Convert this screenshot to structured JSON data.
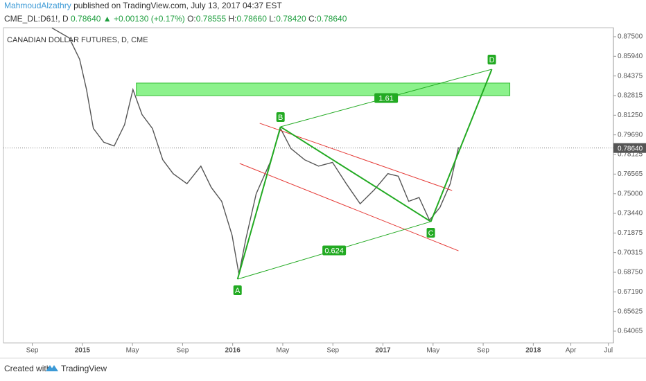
{
  "header": {
    "author": "MahmoudAlzathry",
    "published": "published on TradingView.com, July 13, 2017 04:37 EST",
    "symbol": "CME_DL:D61!, D",
    "last": "0.78640",
    "change": "▲ +0.00130 (+0.17%)",
    "open_label": "O:",
    "open": "0.78555",
    "high_label": "H:",
    "high": "0.78660",
    "low_label": "L:",
    "low": "0.78420",
    "close_label": "C:",
    "close": "0.78640"
  },
  "footer": {
    "created": "Created with",
    "brand": "TradingView"
  },
  "chart_data": {
    "type": "line",
    "title": "CANADIAN DOLLAR FUTURES, D, CME",
    "color": "#555555",
    "x": [
      9.57,
      10.95,
      11.78,
      12.33,
      12.88,
      13.71,
      14.54,
      15.37,
      16.04,
      16.76,
      17.59,
      18.42,
      19.25,
      20.35,
      21.46,
      22.29,
      23.12,
      23.95,
      24.5,
      25.05,
      25.88,
      26.99,
      27.82,
      28.65,
      29.75,
      30.86,
      31.97,
      33.07,
      34.18,
      35.29,
      36.39,
      37.22,
      38.05,
      38.88,
      39.71,
      40.54,
      41.37,
      42.03
    ],
    "values": [
      0.882,
      0.874,
      0.857,
      0.833,
      0.802,
      0.791,
      0.788,
      0.805,
      0.833,
      0.813,
      0.802,
      0.777,
      0.766,
      0.758,
      0.772,
      0.755,
      0.744,
      0.717,
      0.686,
      0.714,
      0.75,
      0.775,
      0.802,
      0.786,
      0.777,
      0.772,
      0.775,
      0.758,
      0.742,
      0.753,
      0.766,
      0.764,
      0.744,
      0.747,
      0.729,
      0.739,
      0.758,
      0.787
    ],
    "xlim": [
      5.7,
      54.4
    ],
    "ylim": [
      0.63128,
      0.88217
    ],
    "xticks": [
      {
        "value": 8,
        "label": "Sep"
      },
      {
        "value": 12,
        "label": "2015"
      },
      {
        "value": 16,
        "label": "May"
      },
      {
        "value": 20,
        "label": "Sep"
      },
      {
        "value": 24,
        "label": "2016"
      },
      {
        "value": 28,
        "label": "May"
      },
      {
        "value": 32,
        "label": "Sep"
      },
      {
        "value": 36,
        "label": "2017"
      },
      {
        "value": 40,
        "label": "May"
      },
      {
        "value": 44,
        "label": "Sep"
      },
      {
        "value": 48,
        "label": "2018"
      },
      {
        "value": 51,
        "label": "Apr"
      },
      {
        "value": 54,
        "label": "Jul"
      }
    ],
    "yticks": [
      {
        "value": 0.875,
        "label": "0.87500"
      },
      {
        "value": 0.8594,
        "label": "0.85940"
      },
      {
        "value": 0.84375,
        "label": "0.84375"
      },
      {
        "value": 0.82815,
        "label": "0.82815"
      },
      {
        "value": 0.8125,
        "label": "0.81250"
      },
      {
        "value": 0.7969,
        "label": "0.79690"
      },
      {
        "value": 0.78125,
        "label": "0.78125"
      },
      {
        "value": 0.76565,
        "label": "0.76565"
      },
      {
        "value": 0.75,
        "label": "0.75000"
      },
      {
        "value": 0.7344,
        "label": "0.73440"
      },
      {
        "value": 0.71875,
        "label": "0.71875"
      },
      {
        "value": 0.70315,
        "label": "0.70315"
      },
      {
        "value": 0.6875,
        "label": "0.68750"
      },
      {
        "value": 0.6719,
        "label": "0.67190"
      },
      {
        "value": 0.65625,
        "label": "0.65625"
      },
      {
        "value": 0.64065,
        "label": "0.64065"
      }
    ],
    "last_price": {
      "value": 0.7864,
      "label": "0.78640"
    },
    "pattern": [
      {
        "label": "A",
        "x": 24.39,
        "y": 0.682
      },
      {
        "label": "B",
        "x": 27.82,
        "y": 0.8033
      },
      {
        "label": "C",
        "x": 39.82,
        "y": 0.7278
      },
      {
        "label": "D",
        "x": 44.69,
        "y": 0.8491
      }
    ],
    "ratios": [
      "0.624",
      "1.61"
    ],
    "zone": {
      "x": [
        16.31,
        46.13
      ],
      "y": [
        0.8281,
        0.8381
      ],
      "color": "#66ee66"
    },
    "channel": {
      "color": "#e53935",
      "lines": [
        {
          "x": [
            26.16,
            41.52
          ],
          "y": [
            0.8061,
            0.7526
          ]
        },
        {
          "x": [
            24.56,
            42.03
          ],
          "y": [
            0.7741,
            0.7046
          ]
        }
      ]
    },
    "pattern_color": "#22aa22"
  }
}
